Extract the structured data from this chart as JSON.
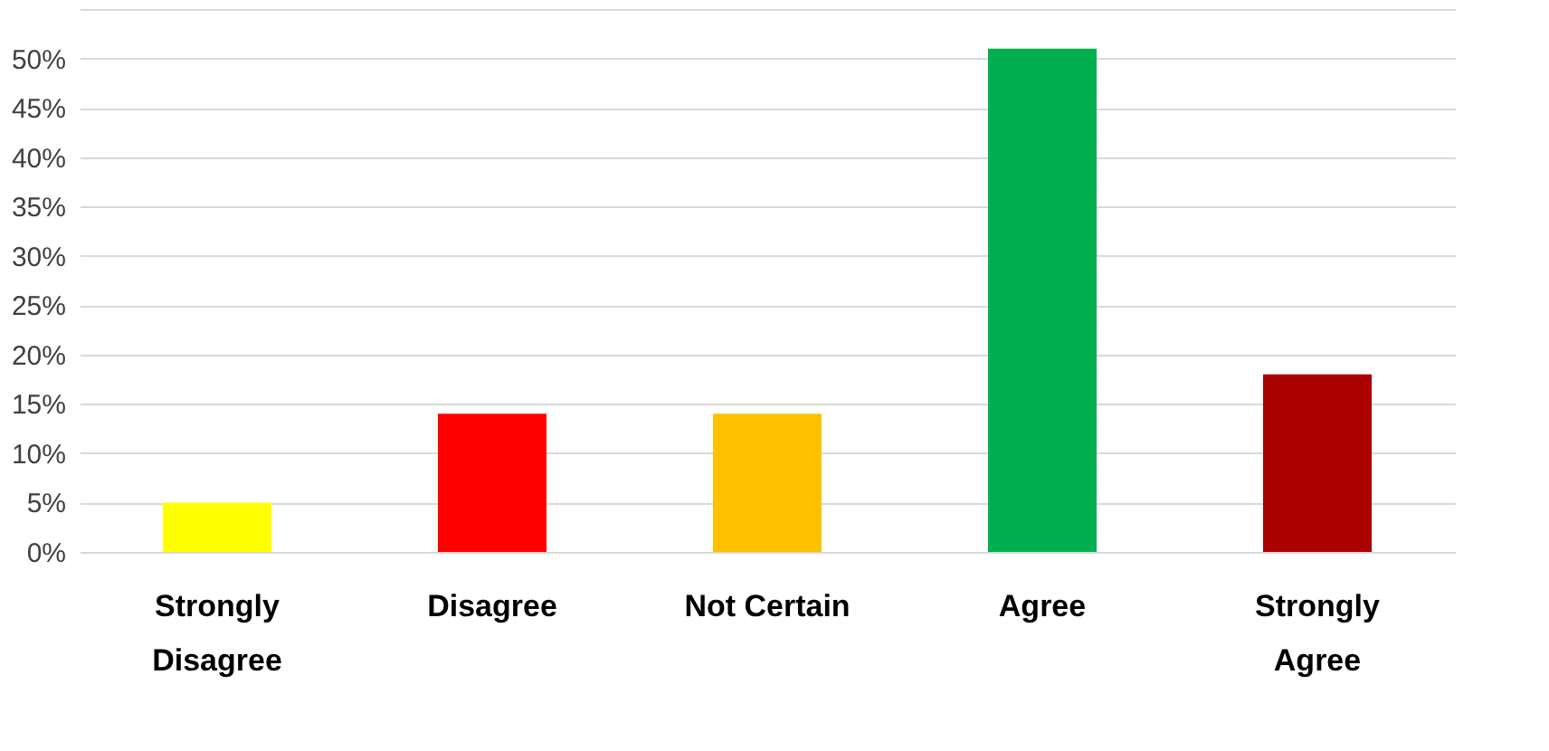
{
  "chart_data": {
    "type": "bar",
    "categories": [
      "Strongly\nDisagree",
      "Disagree",
      "Not Certain",
      "Agree",
      "Strongly\nAgree"
    ],
    "values": [
      5,
      14,
      14,
      51,
      18
    ],
    "colors": [
      "#ffff00",
      "#ff0000",
      "#ffc000",
      "#00b050",
      "#aa0000"
    ],
    "ylim": [
      0,
      55
    ],
    "yticks": [
      {
        "value": 0,
        "label": "0%"
      },
      {
        "value": 5,
        "label": "5%"
      },
      {
        "value": 10,
        "label": "10%"
      },
      {
        "value": 15,
        "label": "15%"
      },
      {
        "value": 20,
        "label": "20%"
      },
      {
        "value": 25,
        "label": "25%"
      },
      {
        "value": 30,
        "label": "30%"
      },
      {
        "value": 35,
        "label": "35%"
      },
      {
        "value": 40,
        "label": "40%"
      },
      {
        "value": 45,
        "label": "45%"
      },
      {
        "value": 50,
        "label": "50%"
      },
      {
        "value": 55,
        "label": null
      }
    ],
    "grid": "y"
  }
}
